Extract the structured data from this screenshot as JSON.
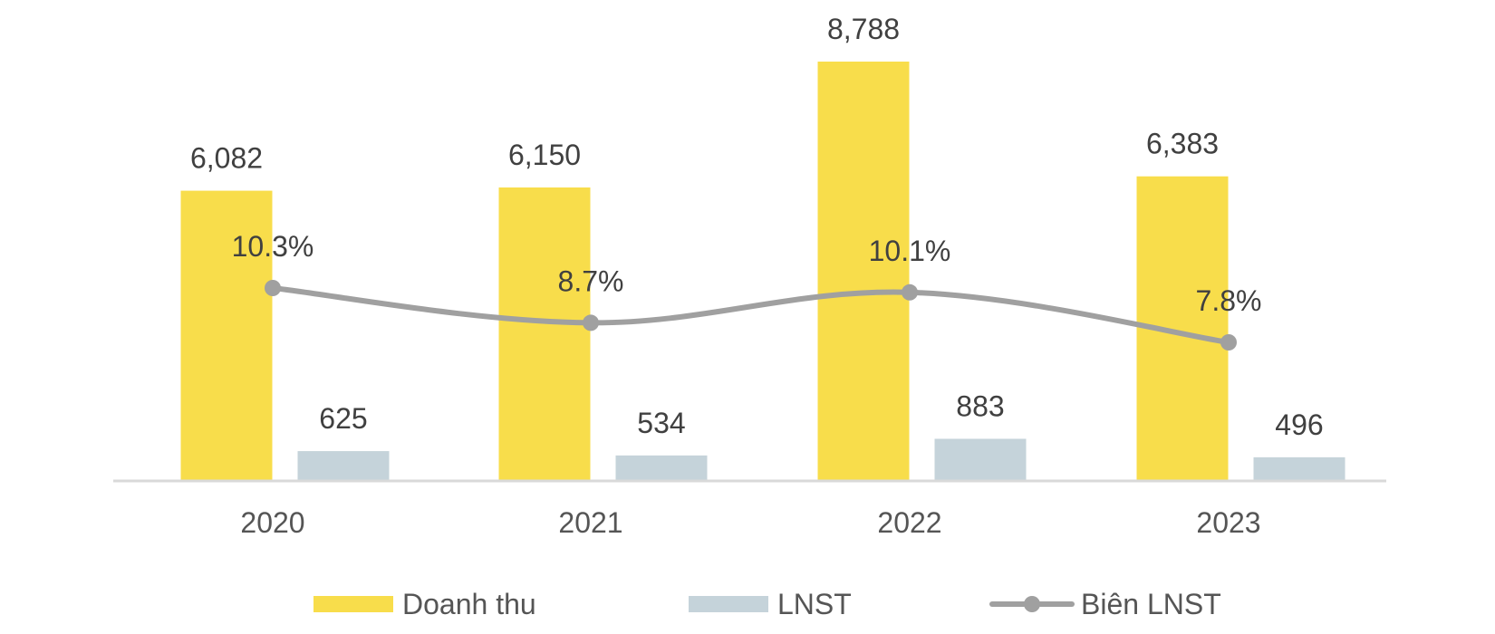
{
  "chart_data": {
    "type": "bar",
    "categories": [
      "2020",
      "2021",
      "2022",
      "2023"
    ],
    "series": [
      {
        "name": "Doanh thu",
        "kind": "bar",
        "values": [
          6082,
          6150,
          8788,
          6383
        ],
        "labels": [
          "6,082",
          "6,150",
          "8,788",
          "6,383"
        ],
        "color": "#F8DD4B"
      },
      {
        "name": "LNST",
        "kind": "bar",
        "values": [
          625,
          534,
          883,
          496
        ],
        "labels": [
          "625",
          "534",
          "883",
          "496"
        ],
        "color": "#C5D3DA"
      },
      {
        "name": "Biên LNST",
        "kind": "line",
        "values": [
          10.3,
          8.7,
          10.1,
          7.8
        ],
        "labels": [
          "10.3%",
          "8.7%",
          "10.1%",
          "7.8%"
        ],
        "color": "#A0A0A0"
      }
    ],
    "axis_color": "#D9D9D9",
    "grid": false,
    "legend_position": "bottom"
  }
}
